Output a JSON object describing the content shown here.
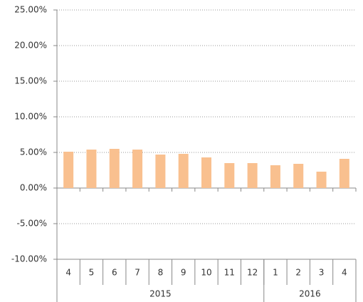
{
  "chart_data": {
    "type": "bar",
    "categories": [
      "4",
      "5",
      "6",
      "7",
      "8",
      "9",
      "10",
      "11",
      "12",
      "1",
      "2",
      "3",
      "4"
    ],
    "x_groups": [
      {
        "label": "2015",
        "count": 9
      },
      {
        "label": "2016",
        "count": 4
      }
    ],
    "values": [
      5.1,
      5.4,
      5.5,
      5.4,
      4.7,
      4.8,
      4.3,
      3.5,
      3.5,
      3.2,
      3.4,
      2.3,
      4.1
    ],
    "color": "#f9c08f",
    "ylim": [
      -10,
      25
    ],
    "yticks": [
      {
        "value": -10,
        "label": "-10.00%"
      },
      {
        "value": -5,
        "label": "-5.00%"
      },
      {
        "value": 0,
        "label": "0.00%"
      },
      {
        "value": 5,
        "label": "5.00%"
      },
      {
        "value": 10,
        "label": "10.00%"
      },
      {
        "value": 15,
        "label": "15.00%"
      },
      {
        "value": 20,
        "label": "20.00%"
      },
      {
        "value": 25,
        "label": "25.00%"
      }
    ],
    "grid": true
  }
}
